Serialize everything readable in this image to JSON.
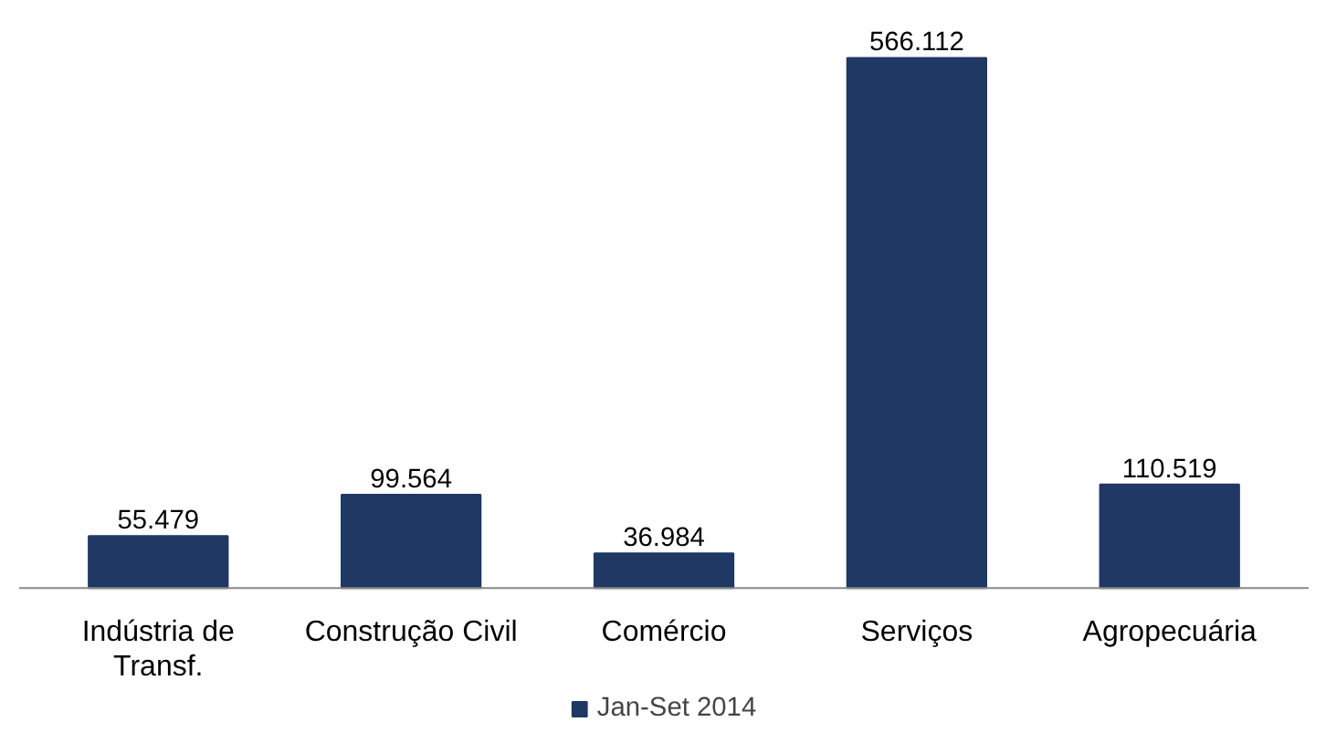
{
  "chart_data": {
    "type": "bar",
    "categories": [
      "Indústria de Transf.",
      "Construção Civil",
      "Comércio",
      "Serviços",
      "Agropecuária"
    ],
    "series": [
      {
        "name": "Jan-Set 2014",
        "color": "#1f3864",
        "values": [
          55.479,
          99.564,
          36.984,
          566.112,
          110.519
        ],
        "value_labels": [
          "55.479",
          "99.564",
          "36.984",
          "566.112",
          "110.519"
        ]
      }
    ],
    "legend": "bottom"
  }
}
